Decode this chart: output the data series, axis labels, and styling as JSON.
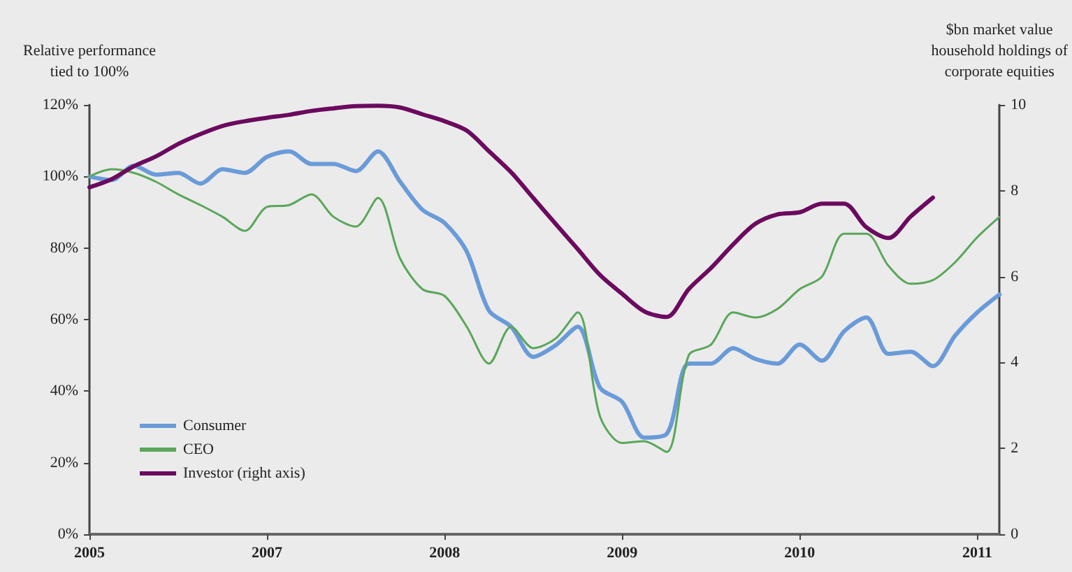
{
  "chart_data": {
    "type": "line",
    "ylabel": "Relative performance\ntied to 100%",
    "y2label": "$bn market value\nhousehold holdings of\ncorporate equities",
    "categories": [
      "2005",
      null,
      null,
      null,
      null,
      null,
      null,
      null,
      "2007",
      null,
      null,
      null,
      null,
      null,
      null,
      null,
      "2008",
      null,
      null,
      null,
      null,
      null,
      null,
      null,
      "2009",
      null,
      null,
      null,
      null,
      null,
      null,
      null,
      "2010",
      null,
      null,
      null,
      null,
      null,
      null,
      null,
      "2011",
      null
    ],
    "series": [
      {
        "name": "Consumer",
        "color": "#6a9bd8",
        "values": [
          100,
          99,
          103,
          100.5,
          101,
          98,
          102,
          101,
          105.5,
          107,
          103.5,
          103.5,
          101.5,
          107,
          98.5,
          90.7,
          87,
          79,
          62.5,
          58,
          49.6,
          52.8,
          58,
          41,
          37,
          27,
          28,
          47.7,
          47.7,
          52,
          49,
          47.7,
          53,
          48.5,
          56.7,
          60.6,
          50.4,
          51,
          47,
          55.5,
          62,
          67
        ]
      },
      {
        "name": "CEO",
        "color": "#5aa65a",
        "values": [
          100,
          102,
          101,
          98.5,
          95,
          92,
          88.7,
          84.8,
          91.5,
          92,
          95,
          88.7,
          86,
          94,
          77,
          68.5,
          66.6,
          58,
          47.7,
          58,
          52,
          54.7,
          62,
          33,
          25.5,
          26,
          23,
          50,
          53,
          62,
          60.6,
          63,
          68.5,
          72,
          84,
          84,
          75,
          70,
          71,
          76,
          83,
          88.7
        ]
      },
      {
        "name": "Investor (right axis)",
        "color": "#6b0a5e",
        "axis": "y2",
        "values": [
          8.08,
          8.27,
          8.57,
          8.8,
          9.09,
          9.32,
          9.51,
          9.62,
          9.7,
          9.77,
          9.86,
          9.92,
          9.97,
          9.98,
          9.94,
          9.78,
          9.62,
          9.4,
          8.92,
          8.43,
          7.83,
          7.23,
          6.64,
          6.04,
          5.6,
          5.19,
          5.06,
          5.71,
          6.2,
          6.75,
          7.23,
          7.45,
          7.5,
          7.7,
          7.7,
          7.15,
          6.9,
          7.4,
          7.84,
          null,
          null,
          null
        ]
      }
    ],
    "ylim": [
      0,
      120
    ],
    "yticks": [
      {
        "value": 0,
        "label": "0%"
      },
      {
        "value": 20,
        "label": "20%"
      },
      {
        "value": 40,
        "label": "40%"
      },
      {
        "value": 60,
        "label": "60%"
      },
      {
        "value": 80,
        "label": "80%"
      },
      {
        "value": 100,
        "label": "100%"
      },
      {
        "value": 120,
        "label": "120%"
      }
    ],
    "y2lim": [
      0,
      10
    ],
    "y2ticks": [
      0,
      2,
      4,
      6,
      8,
      10
    ],
    "grid": false,
    "legend": "bottom left",
    "marker": "none",
    "line_style": "solid"
  }
}
